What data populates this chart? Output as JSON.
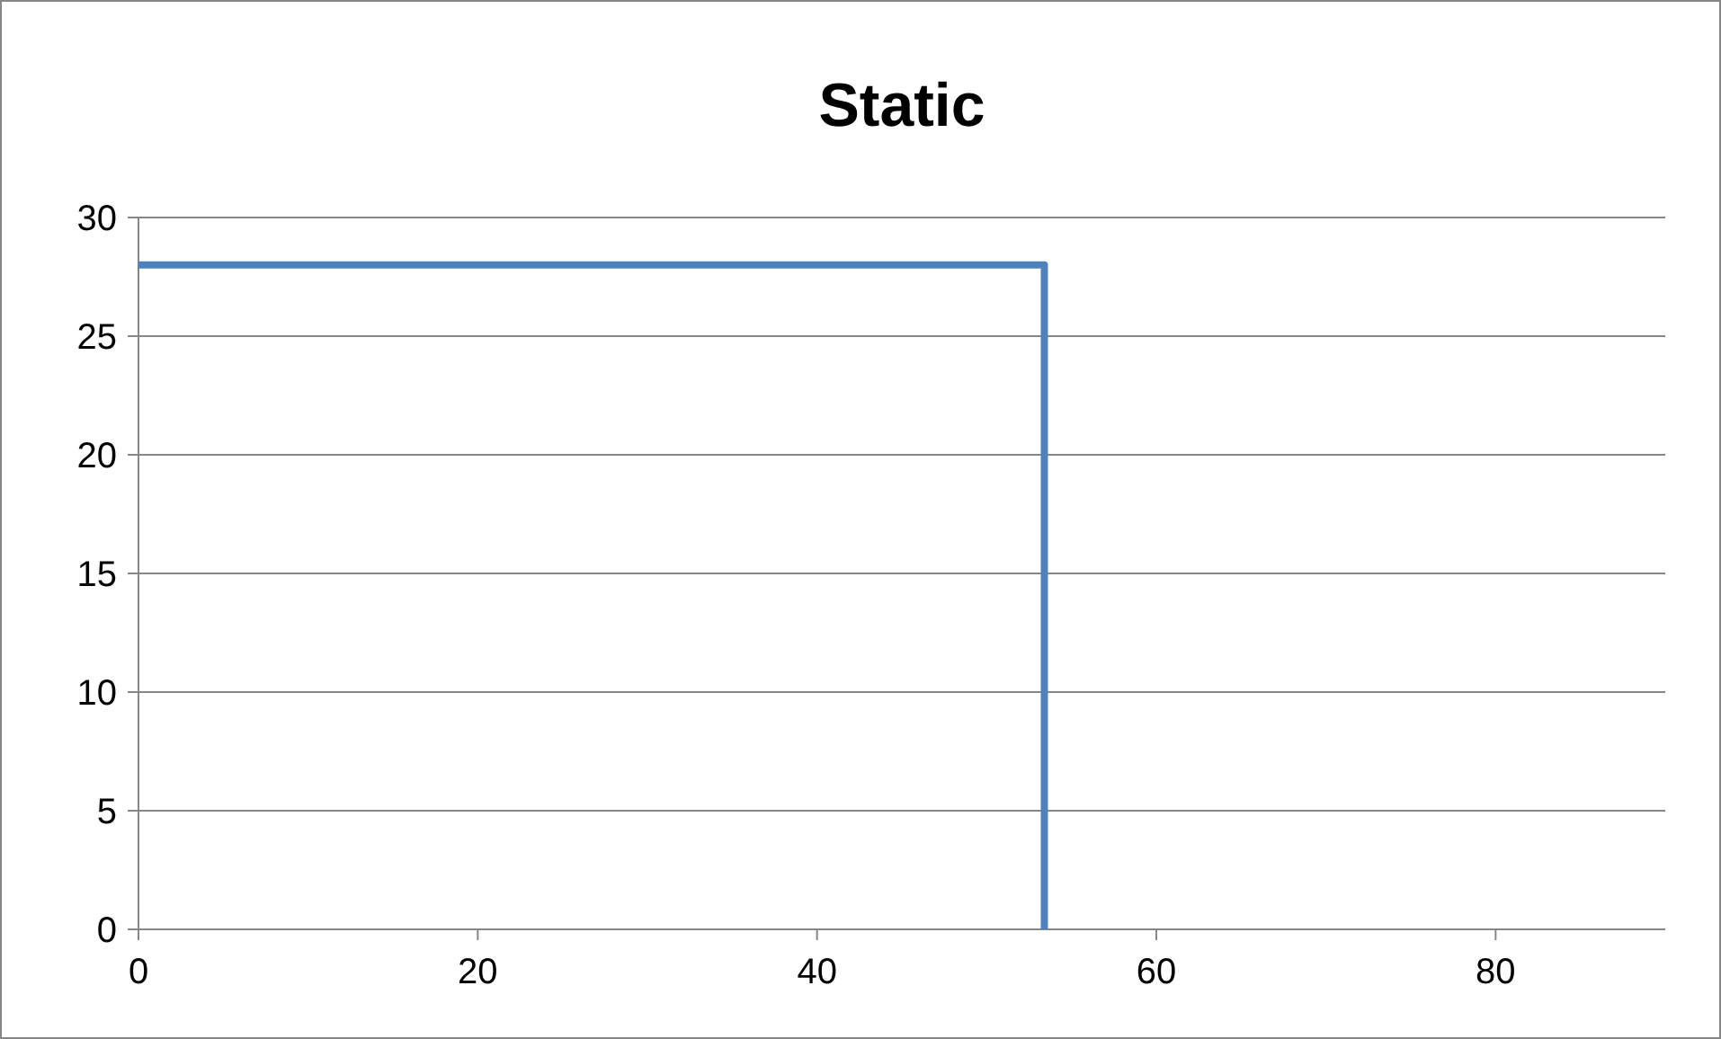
{
  "chart_data": {
    "type": "step",
    "title": "Static",
    "series": [
      {
        "color": "#4f81bd",
        "x": [
          0,
          53.4
        ],
        "values": [
          28,
          0
        ]
      }
    ],
    "xlim": [
      0,
      90
    ],
    "xticks": [
      0,
      20,
      40,
      60,
      80
    ],
    "ylim": [
      0,
      30
    ],
    "yticks": [
      0,
      5,
      10,
      15,
      20,
      25,
      30
    ],
    "grid": "y",
    "marker": "none",
    "line_style": "solid"
  }
}
